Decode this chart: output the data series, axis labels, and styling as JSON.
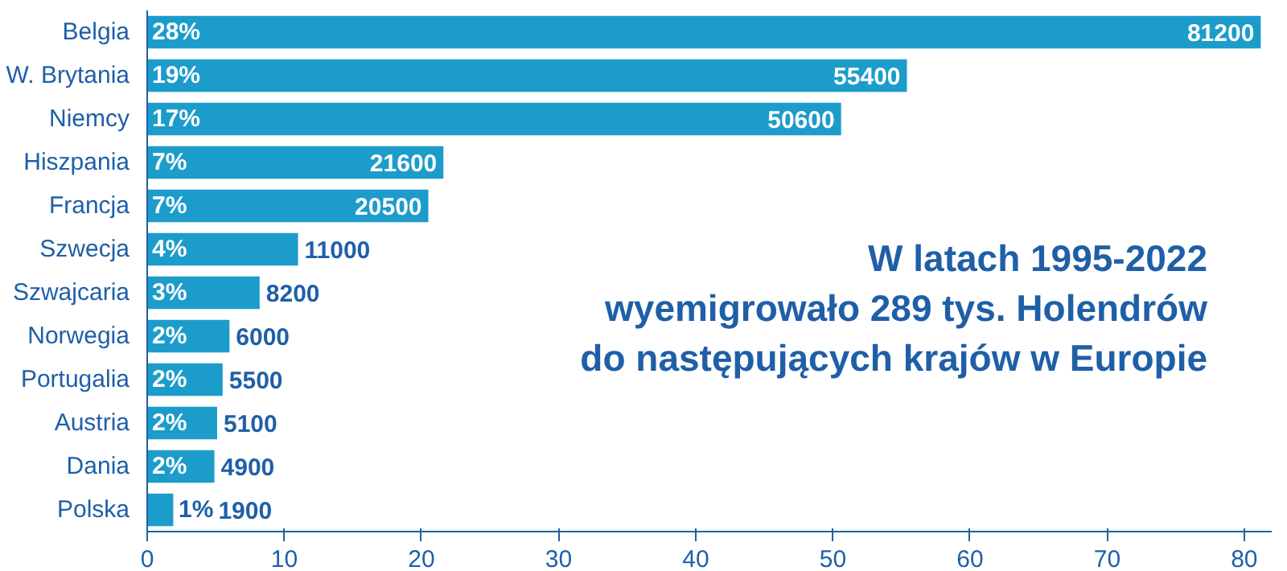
{
  "chart_data": {
    "type": "bar",
    "orientation": "horizontal",
    "title": "W latach 1995-2022\nwyemigrowało 289 tys. Holendrów\ndo następujących krajów w Europie",
    "categories": [
      "Belgia",
      "W. Brytania",
      "Niemcy",
      "Hiszpania",
      "Francja",
      "Szwecja",
      "Szwajcaria",
      "Norwegia",
      "Portugalia",
      "Austria",
      "Dania",
      "Polska"
    ],
    "values": [
      81.2,
      55.4,
      50.6,
      21.6,
      20.5,
      11,
      8.2,
      6,
      5.5,
      5.1,
      4.9,
      1.9
    ],
    "annotations": [
      {
        "text": "28%",
        "x": 0,
        "y": "Belgia"
      },
      {
        "text": "19%",
        "x": 0,
        "y": "W. Brytania"
      },
      {
        "text": "17%",
        "x": 0,
        "y": "Niemcy"
      },
      {
        "text": "7%",
        "x": 0,
        "y": "Hiszpania"
      },
      {
        "text": "7%",
        "x": 0,
        "y": "Francja"
      },
      {
        "text": "4%",
        "x": 0,
        "y": "Szwecja"
      },
      {
        "text": "3%",
        "x": 0,
        "y": "Szwajcaria"
      },
      {
        "text": "2%",
        "x": 0,
        "y": "Norwegia"
      },
      {
        "text": "2%",
        "x": 0,
        "y": "Portugalia"
      },
      {
        "text": "2%",
        "x": 0,
        "y": "Austria"
      },
      {
        "text": "2%",
        "x": 0,
        "y": "Dania"
      },
      {
        "text": "1%",
        "x": 0,
        "y": "Polska"
      },
      {
        "text": "81200",
        "x": 81.2,
        "y": "Belgia"
      },
      {
        "text": "55400",
        "x": 55.4,
        "y": "W. Brytania"
      },
      {
        "text": "50600",
        "x": 50.6,
        "y": "Niemcy"
      },
      {
        "text": "21600",
        "x": 21.6,
        "y": "Hiszpania"
      },
      {
        "text": "20500",
        "x": 20.5,
        "y": "Francja"
      },
      {
        "text": "11000",
        "x": 11,
        "y": "Szwecja"
      },
      {
        "text": "8200",
        "x": 8.2,
        "y": "Szwajcaria"
      },
      {
        "text": "6000",
        "x": 6,
        "y": "Norwegia"
      },
      {
        "text": "5500",
        "x": 5.5,
        "y": "Portugalia"
      },
      {
        "text": "5100",
        "x": 5.1,
        "y": "Austria"
      },
      {
        "text": "4900",
        "x": 4.9,
        "y": "Dania"
      },
      {
        "text": "1900",
        "x": 1.9,
        "y": "Polska"
      }
    ],
    "color": "#1c9ccb",
    "xlim": [
      0,
      82
    ],
    "xticks": [
      0,
      10,
      20,
      30,
      40,
      50,
      60,
      70,
      80
    ],
    "grid": false
  }
}
